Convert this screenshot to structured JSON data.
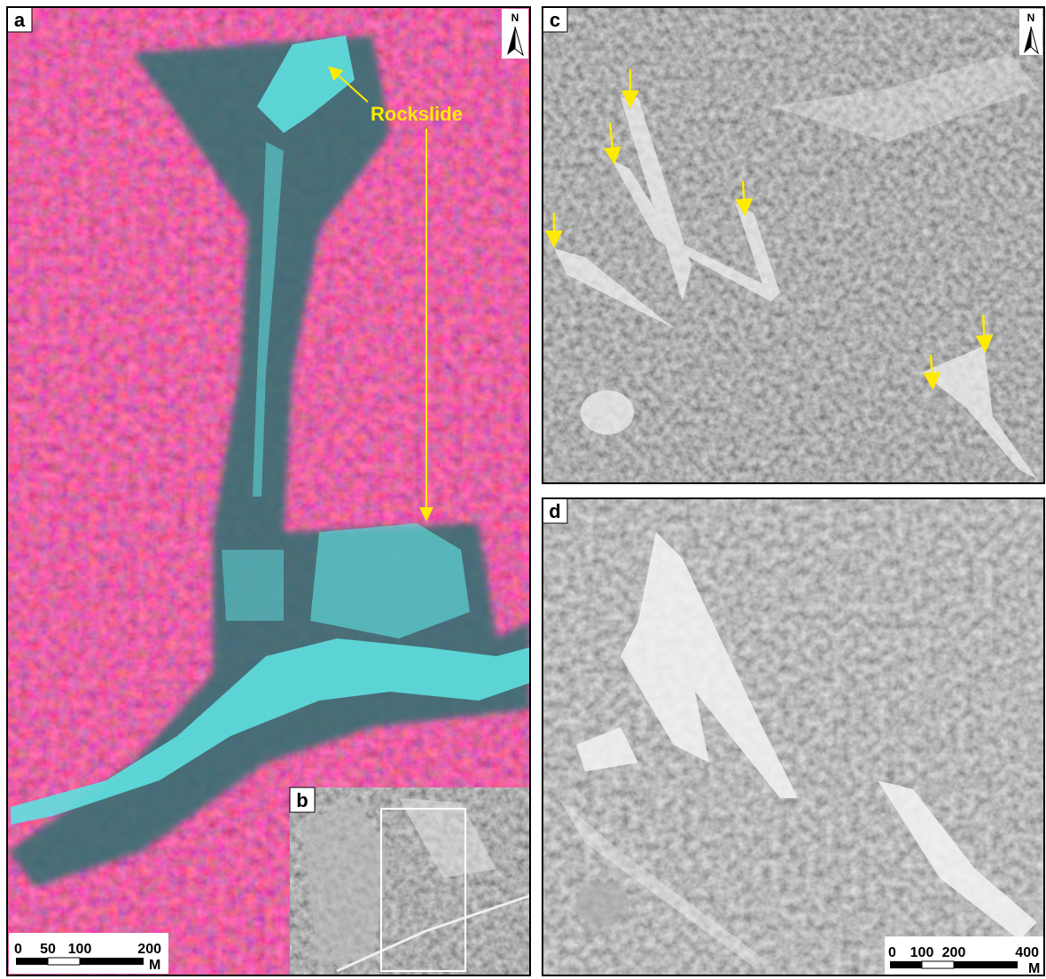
{
  "panels": {
    "a": {
      "label": "a",
      "annotation": "Rockslide",
      "north": "N",
      "scale": {
        "labels": [
          "0",
          "50",
          "100",
          "200"
        ],
        "unit": "M"
      }
    },
    "b": {
      "label": "b"
    },
    "c": {
      "label": "c",
      "north": "N"
    },
    "d": {
      "label": "d",
      "scale": {
        "labels": [
          "0",
          "100",
          "200",
          "400"
        ],
        "unit": "M"
      }
    }
  }
}
